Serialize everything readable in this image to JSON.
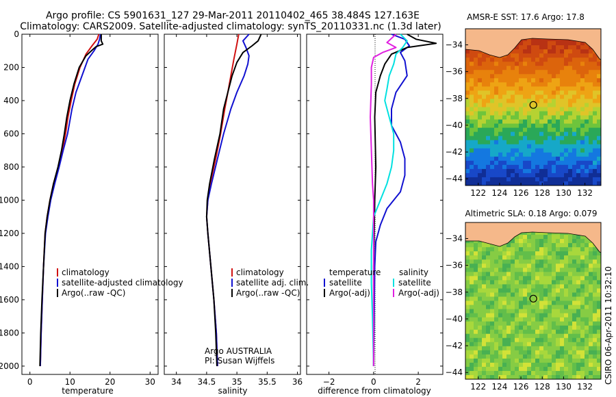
{
  "header": {
    "line1": "Argo profile: CS 5901631_127 29-Mar-2011 20110402_465 38.484S 127.163E",
    "line2": "Climatology: CARS2009. Satellite-adjusted climatology: synTS_20110331.nc (1.3d later)"
  },
  "footer_credit": "CSIRO 06-Apr-2011 10:32:10",
  "colors": {
    "climatology": "#d01010",
    "satellite": "#1010d0",
    "argo": "#000000",
    "diff_sal_sat": "#00e0e0",
    "diff_sal_argo": "#e020e0",
    "land": "#f5b88a"
  },
  "chart_data": [
    {
      "type": "line",
      "id": "temperature",
      "xlabel": "temperature",
      "ylabel": "",
      "xlim": [
        -2,
        32
      ],
      "ylim": [
        2050,
        0
      ],
      "x_ticks": [
        0,
        10,
        20,
        30
      ],
      "y_ticks": [
        0,
        200,
        400,
        600,
        800,
        1000,
        1200,
        1400,
        1600,
        1800,
        2000
      ],
      "legend": [
        "climatology",
        "satellite-adjusted climatology",
        "Argo(..raw -QC)"
      ],
      "series": [
        {
          "name": "climatology",
          "color": "#d01010",
          "points": [
            [
              17.2,
              0
            ],
            [
              16.8,
              30
            ],
            [
              15.5,
              70
            ],
            [
              14,
              120
            ],
            [
              12.5,
              200
            ],
            [
              11.2,
              300
            ],
            [
              10.3,
              400
            ],
            [
              9.5,
              500
            ],
            [
              8.9,
              600
            ],
            [
              8.1,
              700
            ],
            [
              7.1,
              800
            ],
            [
              5.9,
              900
            ],
            [
              5.0,
              1000
            ],
            [
              4.3,
              1100
            ],
            [
              3.8,
              1200
            ],
            [
              3.4,
              1400
            ],
            [
              3.1,
              1600
            ],
            [
              2.8,
              1800
            ],
            [
              2.6,
              2000
            ]
          ]
        },
        {
          "name": "satellite-adjusted climatology",
          "color": "#1010d0",
          "points": [
            [
              17.6,
              0
            ],
            [
              17.4,
              30
            ],
            [
              17,
              60
            ],
            [
              16,
              100
            ],
            [
              14.5,
              150
            ],
            [
              13,
              250
            ],
            [
              11.5,
              350
            ],
            [
              10.5,
              450
            ],
            [
              9.4,
              600
            ],
            [
              8.3,
              700
            ],
            [
              7.3,
              800
            ],
            [
              6.2,
              900
            ],
            [
              5.2,
              1000
            ],
            [
              4.5,
              1100
            ],
            [
              3.9,
              1200
            ],
            [
              3.4,
              1400
            ],
            [
              3.1,
              1600
            ],
            [
              2.8,
              1800
            ],
            [
              2.6,
              2000
            ]
          ]
        },
        {
          "name": "Argo(..raw -QC)",
          "color": "#000000",
          "points": [
            [
              17.8,
              0
            ],
            [
              17.8,
              40
            ],
            [
              18.2,
              60
            ],
            [
              16.5,
              75
            ],
            [
              15.8,
              90
            ],
            [
              14,
              130
            ],
            [
              12.3,
              200
            ],
            [
              11,
              300
            ],
            [
              10,
              400
            ],
            [
              9.2,
              500
            ],
            [
              8.6,
              600
            ],
            [
              7.9,
              700
            ],
            [
              7,
              800
            ],
            [
              5.9,
              900
            ],
            [
              5.0,
              1000
            ],
            [
              4.3,
              1100
            ],
            [
              3.8,
              1200
            ],
            [
              3.4,
              1400
            ],
            [
              3.0,
              1600
            ],
            [
              2.7,
              1800
            ],
            [
              2.5,
              2000
            ]
          ]
        }
      ]
    },
    {
      "type": "line",
      "id": "salinity",
      "xlabel": "salinity",
      "ylabel": "",
      "xlim": [
        33.8,
        36.05
      ],
      "ylim": [
        2050,
        0
      ],
      "x_ticks": [
        34,
        34.5,
        35,
        35.5,
        36
      ],
      "legend": [
        "climatology",
        "satellite adj. clim.",
        "Argo(..raw -QC)"
      ],
      "annotation": [
        "Argo AUSTRALIA",
        "PI: Susan Wijffels"
      ],
      "series": [
        {
          "name": "climatology",
          "color": "#d01010",
          "points": [
            [
              35.03,
              0
            ],
            [
              35.0,
              60
            ],
            [
              34.95,
              150
            ],
            [
              34.9,
              250
            ],
            [
              34.85,
              350
            ],
            [
              34.8,
              450
            ],
            [
              34.73,
              600
            ],
            [
              34.65,
              750
            ],
            [
              34.56,
              900
            ],
            [
              34.52,
              1000
            ],
            [
              34.5,
              1100
            ],
            [
              34.52,
              1200
            ],
            [
              34.57,
              1400
            ],
            [
              34.62,
              1600
            ],
            [
              34.66,
              1800
            ],
            [
              34.68,
              2000
            ]
          ]
        },
        {
          "name": "satellite adj. clim.",
          "color": "#1010d0",
          "points": [
            [
              35.2,
              0
            ],
            [
              35.1,
              40
            ],
            [
              35.15,
              80
            ],
            [
              35.2,
              130
            ],
            [
              35.18,
              180
            ],
            [
              35.12,
              250
            ],
            [
              35.0,
              350
            ],
            [
              34.9,
              450
            ],
            [
              34.78,
              600
            ],
            [
              34.68,
              750
            ],
            [
              34.58,
              900
            ],
            [
              34.52,
              1000
            ],
            [
              34.5,
              1100
            ],
            [
              34.52,
              1200
            ],
            [
              34.57,
              1400
            ],
            [
              34.62,
              1600
            ],
            [
              34.66,
              1800
            ],
            [
              34.68,
              2000
            ]
          ]
        },
        {
          "name": "Argo(..raw -QC)",
          "color": "#000000",
          "points": [
            [
              35.4,
              0
            ],
            [
              35.35,
              40
            ],
            [
              35.25,
              70
            ],
            [
              35.1,
              110
            ],
            [
              35.0,
              170
            ],
            [
              34.92,
              250
            ],
            [
              34.85,
              350
            ],
            [
              34.78,
              450
            ],
            [
              34.72,
              600
            ],
            [
              34.63,
              750
            ],
            [
              34.55,
              900
            ],
            [
              34.51,
              1000
            ],
            [
              34.5,
              1100
            ],
            [
              34.52,
              1200
            ],
            [
              34.57,
              1400
            ],
            [
              34.62,
              1600
            ],
            [
              34.65,
              1800
            ],
            [
              34.67,
              2000
            ]
          ]
        }
      ]
    },
    {
      "type": "line",
      "id": "difference",
      "xlabel": "difference from climatology",
      "ylabel": "",
      "xlim": [
        -3,
        3.1
      ],
      "ylim": [
        2050,
        0
      ],
      "x_ticks": [
        -2,
        0,
        2
      ],
      "legend_temperature_header": "temperature",
      "legend_salinity_header": "salinity",
      "legend": [
        "satellite",
        "Argo(-adj)",
        "satellite",
        "Argo(-adj)"
      ],
      "series": [
        {
          "name": "satellite",
          "group": "temperature",
          "color": "#1010d0",
          "points": [
            [
              0.8,
              0
            ],
            [
              1.4,
              30
            ],
            [
              1.6,
              70
            ],
            [
              1.2,
              110
            ],
            [
              1.4,
              160
            ],
            [
              1.5,
              250
            ],
            [
              1.0,
              350
            ],
            [
              0.8,
              450
            ],
            [
              0.8,
              550
            ],
            [
              1.2,
              650
            ],
            [
              1.4,
              750
            ],
            [
              1.4,
              850
            ],
            [
              1.2,
              950
            ],
            [
              0.6,
              1050
            ],
            [
              0.3,
              1150
            ],
            [
              0.1,
              1250
            ],
            [
              0.05,
              1400
            ],
            [
              0.0,
              2000
            ]
          ]
        },
        {
          "name": "Argo(-adj)",
          "group": "temperature",
          "color": "#000000",
          "points": [
            [
              1.5,
              0
            ],
            [
              1.9,
              30
            ],
            [
              2.8,
              55
            ],
            [
              1.5,
              80
            ],
            [
              0.8,
              120
            ],
            [
              0.5,
              180
            ],
            [
              0.3,
              250
            ],
            [
              0.1,
              350
            ],
            [
              0.05,
              500
            ],
            [
              0.1,
              800
            ],
            [
              0.05,
              1000
            ],
            [
              0.0,
              1400
            ],
            [
              0.0,
              2000
            ]
          ]
        },
        {
          "name": "satellite",
          "group": "salinity",
          "color": "#00e0e0",
          "points": [
            [
              1.2,
              0
            ],
            [
              1.5,
              40
            ],
            [
              1.3,
              80
            ],
            [
              1.0,
              120
            ],
            [
              0.9,
              180
            ],
            [
              0.7,
              250
            ],
            [
              0.6,
              330
            ],
            [
              0.5,
              400
            ],
            [
              0.7,
              500
            ],
            [
              0.9,
              600
            ],
            [
              0.9,
              700
            ],
            [
              0.8,
              800
            ],
            [
              0.6,
              900
            ],
            [
              0.3,
              1000
            ],
            [
              0.0,
              1100
            ],
            [
              -0.1,
              1300
            ],
            [
              -0.1,
              1500
            ],
            [
              -0.05,
              1700
            ],
            [
              0.0,
              2000
            ]
          ]
        },
        {
          "name": "Argo(-adj)",
          "group": "salinity",
          "color": "#e020e0",
          "points": [
            [
              1.0,
              0
            ],
            [
              0.6,
              50
            ],
            [
              1.0,
              80
            ],
            [
              0.4,
              110
            ],
            [
              0.0,
              140
            ],
            [
              -0.1,
              200
            ],
            [
              -0.1,
              300
            ],
            [
              -0.15,
              500
            ],
            [
              -0.1,
              700
            ],
            [
              -0.05,
              900
            ],
            [
              0.0,
              1000
            ],
            [
              0.0,
              2000
            ]
          ]
        }
      ]
    },
    {
      "type": "heatmap",
      "id": "sst_map",
      "title": "AMSR-E SST: 17.6 Argo: 17.8",
      "xlim": [
        120.8,
        133.5
      ],
      "ylim": [
        -44.5,
        -32.8
      ],
      "x_ticks": [
        122,
        124,
        126,
        128,
        130,
        132
      ],
      "y_ticks": [
        -34,
        -36,
        -38,
        -40,
        -42,
        -44
      ],
      "profile_location": [
        127.163,
        -38.484
      ]
    },
    {
      "type": "heatmap",
      "id": "sla_map",
      "title": "Altimetric SLA: 0.18 Argo: 0.079",
      "xlim": [
        120.8,
        133.5
      ],
      "ylim": [
        -44.5,
        -32.8
      ],
      "x_ticks": [
        122,
        124,
        126,
        128,
        130,
        132
      ],
      "y_ticks": [
        -34,
        -36,
        -38,
        -40,
        -42,
        -44
      ],
      "profile_location": [
        127.163,
        -38.484
      ]
    }
  ]
}
